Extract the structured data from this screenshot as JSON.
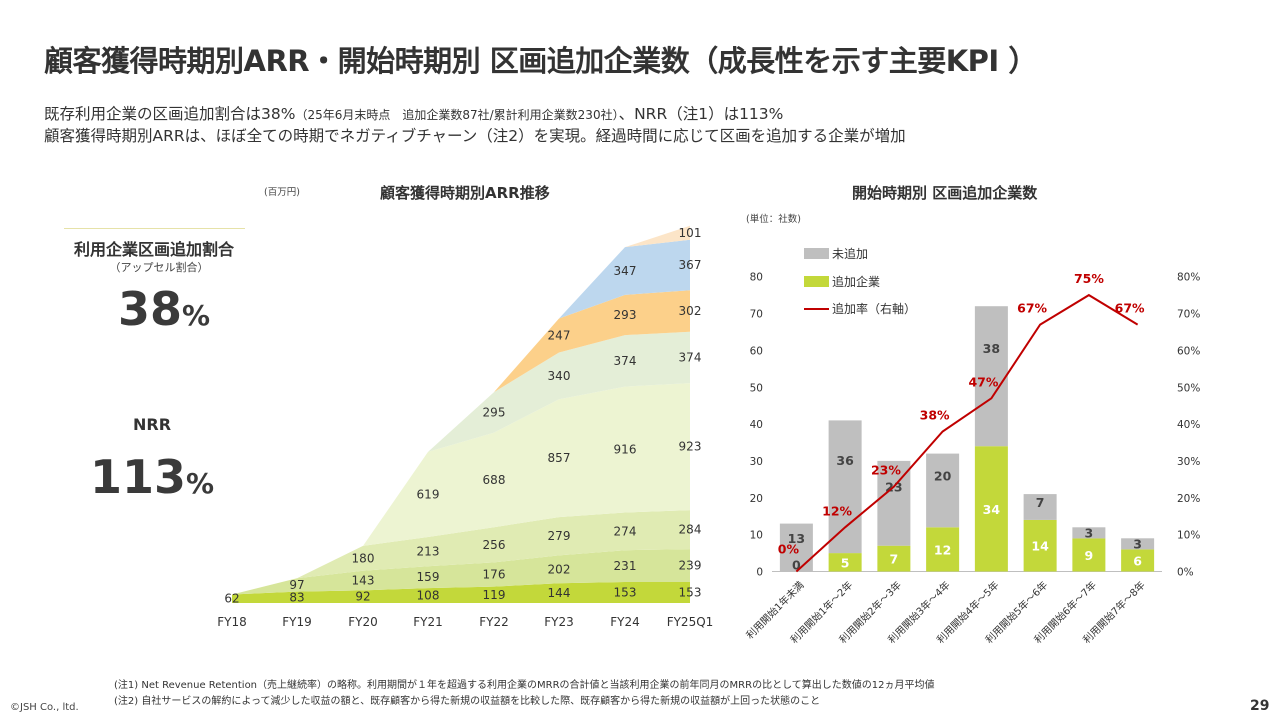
{
  "header": {
    "title": "顧客獲得時期別ARR・開始時期別 区画追加企業数（成長性を示す主要KPI ）",
    "line1_main": "既存利用企業の区画追加割合は38%",
    "line1_small": "（25年6月末時点　追加企業数87社/累計利用企業数230社）",
    "line1_tail": "、NRR（注1）は113%",
    "line2": "顧客獲得時期別ARRは、ほぼ全ての時期でネガティブチャーン（注2）を実現。経過時間に応じて区画を追加する企業が増加"
  },
  "kpis": {
    "upsell_label": "利用企業区画追加割合",
    "upsell_note": "（アップセル割合）",
    "upsell_value": "38",
    "upsell_unit": "%",
    "nrr_label": "NRR",
    "nrr_value": "113",
    "nrr_unit": "%"
  },
  "arr_chart": {
    "title": "顧客獲得時期別ARR推移",
    "unit": "(百万円)"
  },
  "bar_chart": {
    "title": "開始時期別 区画追加企業数",
    "unit": "(単位：社数)"
  },
  "chart_data": [
    {
      "type": "area",
      "title": "顧客獲得時期別ARR推移",
      "ylabel": "(百万円)",
      "x": [
        "FY18",
        "FY19",
        "FY20",
        "FY21",
        "FY22",
        "FY23",
        "FY24",
        "FY25Q1"
      ],
      "series": [
        {
          "values": [
            62,
            83,
            92,
            108,
            119,
            144,
            153,
            153
          ],
          "color": "#c3d83a",
          "labels": [
            "62",
            "83",
            "92",
            "108",
            "119",
            "144",
            "153",
            "153"
          ]
        },
        {
          "values": [
            0,
            97,
            143,
            159,
            176,
            202,
            231,
            239
          ],
          "color": "#d6e59a",
          "labels": [
            "",
            "97",
            "143",
            "159",
            "176",
            "202",
            "231",
            "239"
          ]
        },
        {
          "values": [
            0,
            0,
            180,
            213,
            256,
            279,
            274,
            284
          ],
          "color": "#e0ebb3",
          "labels": [
            "",
            "",
            "180",
            "213",
            "256",
            "279",
            "274",
            "284"
          ]
        },
        {
          "values": [
            0,
            0,
            0,
            619,
            688,
            857,
            916,
            923
          ],
          "color": "#edf4d2",
          "labels": [
            "",
            "",
            "",
            "619",
            "688",
            "857",
            "916",
            "923"
          ]
        },
        {
          "values": [
            0,
            0,
            0,
            0,
            295,
            340,
            374,
            374
          ],
          "color": "#e4eed7",
          "labels": [
            "",
            "",
            "",
            "",
            "295",
            "340",
            "374",
            "374"
          ]
        },
        {
          "values": [
            0,
            0,
            0,
            0,
            0,
            247,
            293,
            302
          ],
          "color": "#fcd08a",
          "labels": [
            "",
            "",
            "",
            "",
            "",
            "247",
            "293",
            "302"
          ]
        },
        {
          "values": [
            0,
            0,
            0,
            0,
            0,
            0,
            347,
            367
          ],
          "color": "#bdd7ee",
          "labels": [
            "",
            "",
            "",
            "",
            "",
            "",
            "347",
            "367"
          ]
        },
        {
          "values": [
            0,
            0,
            0,
            0,
            0,
            0,
            0,
            101
          ],
          "color": "#fce5c8",
          "labels": [
            "",
            "",
            "",
            "",
            "",
            "",
            "",
            "101"
          ]
        }
      ]
    },
    {
      "type": "bar",
      "title": "開始時期別 区画追加企業数",
      "ylabel": "(単位：社数)",
      "stacked": true,
      "categories": [
        "利用開始1年未満",
        "利用開始1年～2年",
        "利用開始2年～3年",
        "利用開始3年～4年",
        "利用開始4年～5年",
        "利用開始5年～6年",
        "利用開始6年～7年",
        "利用開始7年～8年"
      ],
      "series": [
        {
          "name": "追加企業",
          "values": [
            0,
            5,
            7,
            12,
            34,
            14,
            9,
            6
          ],
          "color": "#c3d83a"
        },
        {
          "name": "未追加",
          "values": [
            13,
            36,
            23,
            20,
            38,
            7,
            3,
            3
          ],
          "color": "#bfbfbf"
        }
      ],
      "line": {
        "name": "追加率（右軸）",
        "values": [
          0,
          12,
          23,
          38,
          47,
          67,
          75,
          67
        ],
        "labels": [
          "0%",
          "12%",
          "23%",
          "38%",
          "47%",
          "67%",
          "75%",
          "67%"
        ],
        "color": "#c00000"
      },
      "ylim": [
        0,
        80
      ],
      "yticks": [
        "0",
        "10",
        "20",
        "30",
        "40",
        "50",
        "60",
        "70",
        "80"
      ],
      "y2lim": [
        0,
        80
      ],
      "y2ticks": [
        "0%",
        "10%",
        "20%",
        "30%",
        "40%",
        "50%",
        "60%",
        "70%",
        "80%"
      ],
      "legend_position": "top-left"
    }
  ],
  "footnotes": {
    "note1": "(注1) Net Revenue Retention（売上継続率）の略称。利用期間が１年を超過する利用企業のMRRの合計値と当該利用企業の前年同月のMRRの比として算出した数値の12ヵ月平均値",
    "note2": "(注2) 自社サービスの解約によって減少した収益の額と、既存顧客から得た新規の収益額を比較した際、既存顧客から得た新規の収益額が上回った状態のこと"
  },
  "footer": {
    "copyright": "©JSH Co., ltd.",
    "page": "29"
  }
}
